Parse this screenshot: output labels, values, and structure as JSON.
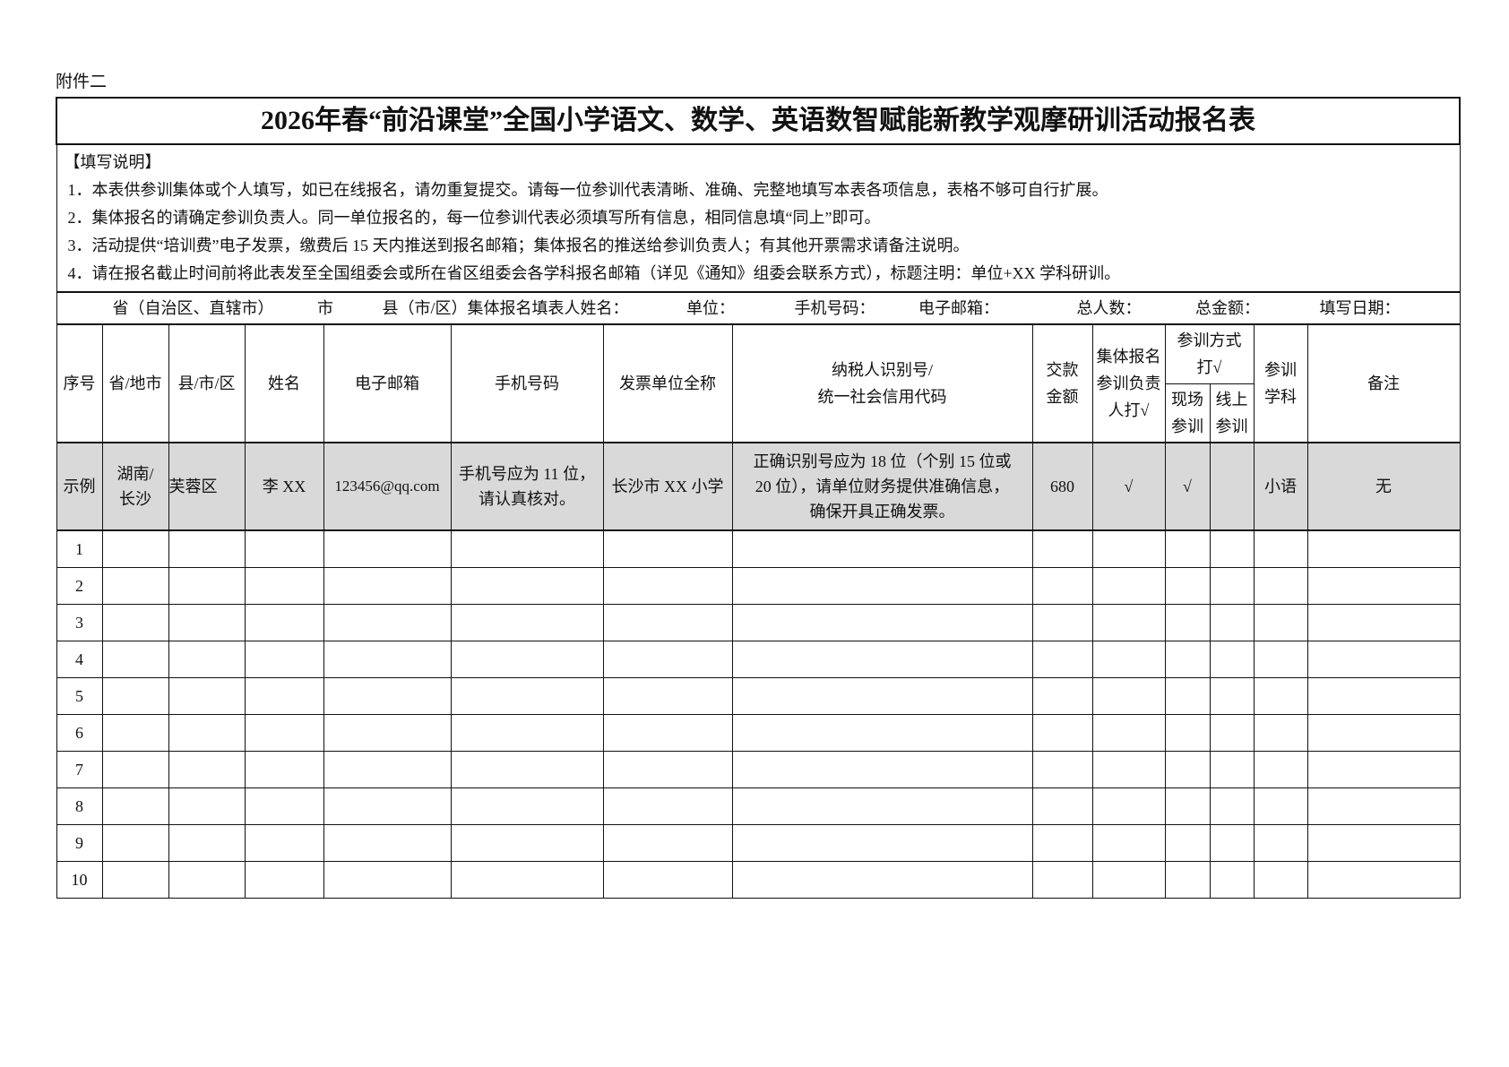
{
  "attachment_label": "附件二",
  "title": "2026年春“前沿课堂”全国小学语文、数学、英语数智赋能新教学观摩研训活动报名表",
  "instructions": {
    "heading": "【填写说明】",
    "items": [
      "1．本表供参训集体或个人填写，如已在线报名，请勿重复提交。请每一位参训代表清晰、准确、完整地填写本表各项信息，表格不够可自行扩展。",
      "2．集体报名的请确定参训负责人。同一单位报名的，每一位参训代表必须填写所有信息，相同信息填“同上”即可。",
      "3．活动提供“培训费”电子发票，缴费后 15 天内推送到报名邮箱；集体报名的推送给参训负责人；有其他开票需求请备注说明。",
      "4．请在报名截止时间前将此表发至全国组委会或所在省区组委会各学科报名邮箱（详见《通知》组委会联系方式），标题注明：单位+XX 学科研训。"
    ]
  },
  "info_row": {
    "province": "省（自治区、直辖市）",
    "city": "市",
    "county": "县（市/区）集体报名填表人姓名：",
    "unit": "单位：",
    "phone": "手机号码：",
    "email": "电子邮箱：",
    "total_people": "总人数：",
    "total_amount": "总金额：",
    "date": "填写日期："
  },
  "columns": {
    "seq": "序号",
    "province_city": "省/地市",
    "county": "县/市/区",
    "name": "姓名",
    "email": "电子邮箱",
    "phone": "手机号码",
    "invoice_unit": "发票单位全称",
    "tax_id_1": "纳税人识别号/",
    "tax_id_2": "统一社会信用代码",
    "amount_1": "交款",
    "amount_2": "金额",
    "leader_1": "集体报名",
    "leader_2": "参训负责",
    "leader_3": "人打√",
    "mode_1": "参训方式",
    "mode_2": "打√",
    "onsite_1": "现场",
    "onsite_2": "参训",
    "online_1": "线上",
    "online_2": "参训",
    "subject_1": "参训",
    "subject_2": "学科",
    "remark": "备注"
  },
  "example": {
    "seq": "示例",
    "province_city_1": "湖南/",
    "province_city_2": "长沙",
    "county": "芙蓉区",
    "name": "李 XX",
    "email": "123456@qq.com",
    "phone_1": "手机号应为 11 位，",
    "phone_2": "请认真核对。",
    "invoice_unit": "长沙市 XX 小学",
    "tax_1": "正确识别号应为 18 位（个别 15 位或",
    "tax_2": "20 位），请单位财务提供准确信息，",
    "tax_3": "确保开具正确发票。",
    "amount": "680",
    "leader": "√",
    "onsite": "√",
    "online": "",
    "subject": "小语",
    "remark": "无"
  },
  "rows": [
    "1",
    "2",
    "3",
    "4",
    "5",
    "6",
    "7",
    "8",
    "9",
    "10"
  ]
}
